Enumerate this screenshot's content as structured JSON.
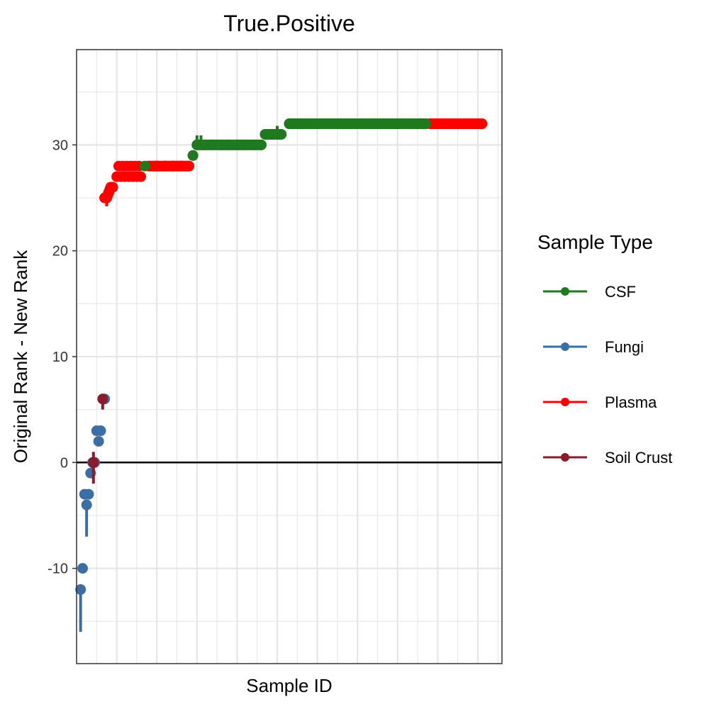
{
  "chart_data": {
    "type": "scatter",
    "title": "True.Positive",
    "xlabel": "Sample ID",
    "ylabel": "Original Rank - New Rank",
    "xlim": [
      0,
      106
    ],
    "ylim": [
      -19,
      39
    ],
    "yticks": [
      -10,
      0,
      10,
      20,
      30
    ],
    "x_tick_labels": [],
    "grid": true,
    "hline": 0,
    "legend": {
      "title": "Sample Type",
      "position": "right"
    },
    "colors": {
      "CSF": "#1f7a1f",
      "Fungi": "#3a6ea5",
      "Plasma": "#ff0000",
      "Soil Crust": "#8b1a2b"
    },
    "series": [
      {
        "name": "Fungi",
        "color": "#3a6ea5",
        "points": [
          [
            1,
            -12
          ],
          [
            1.5,
            -10
          ],
          [
            2,
            -3
          ],
          [
            2.5,
            -4
          ],
          [
            3,
            -3
          ],
          [
            3.5,
            -1
          ],
          [
            4,
            0
          ],
          [
            4.5,
            0
          ],
          [
            5,
            3
          ],
          [
            5.5,
            2
          ],
          [
            6,
            3
          ],
          [
            7,
            6
          ]
        ],
        "bars": [
          [
            1,
            -12,
            -16
          ],
          [
            2.5,
            -4,
            -7
          ],
          [
            4,
            0,
            -1
          ]
        ]
      },
      {
        "name": "Soil Crust",
        "color": "#8b1a2b",
        "points": [
          [
            4.2,
            0
          ],
          [
            6.5,
            6
          ]
        ],
        "bars": [
          [
            4.2,
            1,
            -2
          ],
          [
            6.5,
            6,
            5
          ]
        ]
      },
      {
        "name": "Plasma",
        "color": "#ff0000",
        "points": [
          [
            7,
            25
          ],
          [
            7.5,
            25
          ],
          [
            8,
            25.5
          ],
          [
            8.5,
            26
          ],
          [
            9,
            26
          ],
          [
            10,
            27
          ],
          [
            10.5,
            28
          ],
          [
            11,
            27
          ],
          [
            11.5,
            28
          ],
          [
            12,
            27
          ],
          [
            12.5,
            28
          ],
          [
            13,
            27
          ],
          [
            13.5,
            28
          ],
          [
            14,
            27
          ],
          [
            14.5,
            28
          ],
          [
            15,
            27
          ],
          [
            15.5,
            28
          ],
          [
            16,
            27
          ],
          [
            18,
            28
          ],
          [
            20,
            28
          ],
          [
            22,
            28
          ],
          [
            24,
            28
          ],
          [
            26,
            28
          ],
          [
            28,
            28
          ],
          [
            29,
            29
          ],
          [
            46,
            30
          ],
          [
            88,
            32
          ],
          [
            90,
            32
          ],
          [
            92,
            32
          ],
          [
            94,
            32
          ],
          [
            96,
            32
          ],
          [
            98,
            32
          ],
          [
            100,
            32
          ],
          [
            101,
            32
          ]
        ],
        "bars": [
          [
            7.5,
            25,
            24.2
          ]
        ]
      },
      {
        "name": "CSF",
        "color": "#1f7a1f",
        "points": [
          [
            17,
            28
          ],
          [
            29,
            29
          ],
          [
            30,
            30
          ],
          [
            32,
            30
          ],
          [
            34,
            30
          ],
          [
            36,
            30
          ],
          [
            38,
            30
          ],
          [
            40,
            30
          ],
          [
            42,
            30
          ],
          [
            44,
            30
          ],
          [
            46,
            30
          ],
          [
            47,
            31
          ],
          [
            49,
            31
          ],
          [
            51,
            31
          ],
          [
            53,
            32
          ],
          [
            56,
            32
          ],
          [
            60,
            32
          ],
          [
            64,
            32
          ],
          [
            68,
            32
          ],
          [
            72,
            32
          ],
          [
            76,
            32
          ],
          [
            80,
            32
          ],
          [
            84,
            32
          ],
          [
            87,
            32
          ]
        ],
        "bars": [
          [
            30,
            30,
            30.9
          ],
          [
            31,
            30,
            30.9
          ],
          [
            50,
            31,
            31.8
          ]
        ]
      }
    ]
  }
}
